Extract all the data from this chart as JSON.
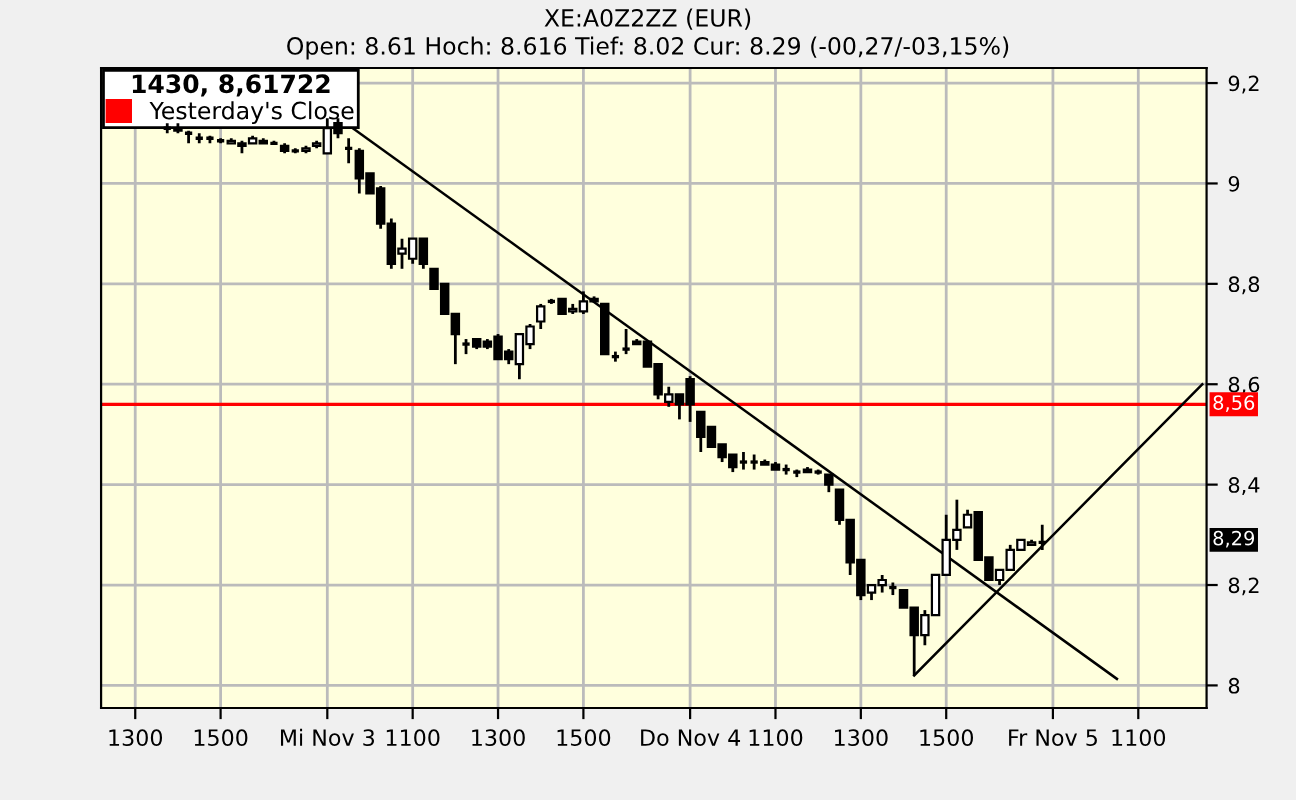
{
  "chart_data": {
    "type": "candlestick",
    "title": "XE:A0Z2ZZ (EUR)",
    "subtitle": "Open: 8.61 Hoch: 8.616 Tief: 8.02 Cur: 8.29 (-00,27/-03,15%)",
    "legend_title": "1430, 8,61722",
    "legend": "top left",
    "grid": true,
    "categories": [
      null,
      null,
      null,
      "1300",
      null,
      null,
      null,
      null,
      null,
      null,
      null,
      "1500",
      null,
      null,
      null,
      null,
      null,
      null,
      null,
      null,
      null,
      "Mi Nov 3",
      null,
      null,
      null,
      null,
      null,
      null,
      null,
      "1100",
      null,
      null,
      null,
      null,
      null,
      null,
      null,
      "1300",
      null,
      null,
      null,
      null,
      null,
      null,
      null,
      "1500",
      null,
      null,
      null,
      null,
      null,
      null,
      null,
      null,
      null,
      "Do Nov 4",
      null,
      null,
      null,
      null,
      null,
      null,
      null,
      "1100",
      null,
      null,
      null,
      null,
      null,
      null,
      null,
      "1300",
      null,
      null,
      null,
      null,
      null,
      null,
      null,
      "1500",
      null,
      null,
      null,
      null,
      null,
      null,
      null,
      null,
      null,
      "Fr Nov 5",
      null,
      null,
      null,
      null,
      null,
      null,
      null,
      "1100",
      null,
      null,
      null,
      null,
      null,
      null
    ],
    "ohlc": [
      null,
      null,
      null,
      null,
      null,
      null,
      [
        9.11,
        9.12,
        9.1,
        9.11
      ],
      [
        9.11,
        9.12,
        9.1,
        9.105
      ],
      [
        9.1,
        9.105,
        9.08,
        9.1
      ],
      [
        9.09,
        9.1,
        9.08,
        9.09
      ],
      [
        9.09,
        9.095,
        9.08,
        9.09
      ],
      [
        9.085,
        9.09,
        9.08,
        9.085
      ],
      [
        9.08,
        9.09,
        9.08,
        9.085
      ],
      [
        9.08,
        9.085,
        9.06,
        9.075
      ],
      [
        9.08,
        9.095,
        9.08,
        9.09
      ],
      [
        9.085,
        9.09,
        9.08,
        9.08
      ],
      [
        9.08,
        9.085,
        9.08,
        9.08
      ],
      [
        9.075,
        9.08,
        9.06,
        9.065
      ],
      [
        9.065,
        9.07,
        9.06,
        9.065
      ],
      [
        9.065,
        9.075,
        9.06,
        9.07
      ],
      [
        9.075,
        9.085,
        9.07,
        9.08
      ],
      [
        9.06,
        9.13,
        9.06,
        9.11
      ],
      [
        9.12,
        9.13,
        9.09,
        9.1
      ],
      [
        9.07,
        9.09,
        9.04,
        9.07
      ],
      [
        9.065,
        9.07,
        8.98,
        9.01
      ],
      [
        9.02,
        9.02,
        8.98,
        8.98
      ],
      [
        8.99,
        8.995,
        8.91,
        8.92
      ],
      [
        8.92,
        8.93,
        8.83,
        8.84
      ],
      [
        8.86,
        8.89,
        8.83,
        8.87
      ],
      [
        8.85,
        8.89,
        8.84,
        8.89
      ],
      [
        8.89,
        8.89,
        8.83,
        8.84
      ],
      [
        8.83,
        8.83,
        8.79,
        8.79
      ],
      [
        8.8,
        8.8,
        8.74,
        8.74
      ],
      [
        8.74,
        8.74,
        8.64,
        8.7
      ],
      [
        8.68,
        8.69,
        8.66,
        8.68
      ],
      [
        8.69,
        8.69,
        8.67,
        8.675
      ],
      [
        8.685,
        8.69,
        8.67,
        8.675
      ],
      [
        8.695,
        8.7,
        8.65,
        8.65
      ],
      [
        8.665,
        8.67,
        8.64,
        8.65
      ],
      [
        8.64,
        8.7,
        8.61,
        8.7
      ],
      [
        8.68,
        8.72,
        8.67,
        8.715
      ],
      [
        8.725,
        8.76,
        8.71,
        8.755
      ],
      [
        8.765,
        8.77,
        8.76,
        8.765
      ],
      [
        8.77,
        8.77,
        8.74,
        8.74
      ],
      [
        8.745,
        8.76,
        8.74,
        8.75
      ],
      [
        8.745,
        8.785,
        8.74,
        8.765
      ],
      [
        8.77,
        8.775,
        8.765,
        8.765
      ],
      [
        8.76,
        8.76,
        8.66,
        8.66
      ],
      [
        8.655,
        8.665,
        8.645,
        8.655
      ],
      [
        8.67,
        8.71,
        8.66,
        8.67
      ],
      [
        8.685,
        8.69,
        8.68,
        8.68
      ],
      [
        8.685,
        8.685,
        8.635,
        8.635
      ],
      [
        8.64,
        8.64,
        8.57,
        8.58
      ],
      [
        8.565,
        8.595,
        8.555,
        8.58
      ],
      [
        8.58,
        8.58,
        8.53,
        8.56
      ],
      [
        8.61,
        8.616,
        8.525,
        8.56
      ],
      [
        8.545,
        8.545,
        8.465,
        8.495
      ],
      [
        8.515,
        8.515,
        8.475,
        8.475
      ],
      [
        8.48,
        8.48,
        8.445,
        8.455
      ],
      [
        8.46,
        8.46,
        8.425,
        8.435
      ],
      [
        8.445,
        8.465,
        8.43,
        8.445
      ],
      [
        8.445,
        8.46,
        8.43,
        8.445
      ],
      [
        8.445,
        8.45,
        8.44,
        8.44
      ],
      [
        8.44,
        8.445,
        8.43,
        8.43
      ],
      [
        8.43,
        8.44,
        8.42,
        8.43
      ],
      [
        8.425,
        8.43,
        8.415,
        8.425
      ],
      [
        8.43,
        8.435,
        8.425,
        8.425
      ],
      [
        8.425,
        8.43,
        8.42,
        8.425
      ],
      [
        8.42,
        8.42,
        8.385,
        8.4
      ],
      [
        8.39,
        8.39,
        8.32,
        8.33
      ],
      [
        8.33,
        8.33,
        8.22,
        8.245
      ],
      [
        8.25,
        8.25,
        8.17,
        8.18
      ],
      [
        8.185,
        8.2,
        8.17,
        8.2
      ],
      [
        8.2,
        8.22,
        8.185,
        8.21
      ],
      [
        8.195,
        8.205,
        8.18,
        8.195
      ],
      [
        8.19,
        8.19,
        8.155,
        8.155
      ],
      [
        8.155,
        8.155,
        8.02,
        8.1
      ],
      [
        8.1,
        8.15,
        8.08,
        8.14
      ],
      [
        8.14,
        8.22,
        8.14,
        8.22
      ],
      [
        8.22,
        8.34,
        8.22,
        8.29
      ],
      [
        8.29,
        8.37,
        8.27,
        8.31
      ],
      [
        8.315,
        8.35,
        8.315,
        8.34
      ],
      [
        8.345,
        8.345,
        8.25,
        8.25
      ],
      [
        8.255,
        8.255,
        8.21,
        8.21
      ],
      [
        8.21,
        8.23,
        8.2,
        8.23
      ],
      [
        8.23,
        8.28,
        8.23,
        8.27
      ],
      [
        8.27,
        8.29,
        8.27,
        8.29
      ],
      [
        8.28,
        8.29,
        8.28,
        8.285
      ],
      [
        8.285,
        8.32,
        8.27,
        8.285
      ],
      null,
      null,
      null,
      null,
      null,
      null,
      null,
      null,
      null,
      null,
      null,
      null,
      null,
      null,
      null
    ],
    "series": [
      {
        "type": "line",
        "color": "#000000",
        "values": [
          null,
          null,
          null,
          null,
          null,
          null,
          null,
          null,
          null,
          null,
          null,
          null,
          null,
          null,
          null,
          null,
          null,
          null,
          null,
          null,
          null,
          null,
          null,
          9.116,
          null,
          null,
          null,
          null,
          null,
          null,
          null,
          null,
          null,
          null,
          null,
          null,
          null,
          null,
          null,
          null,
          null,
          null,
          null,
          null,
          null,
          null,
          null,
          null,
          null,
          null,
          null,
          null,
          null,
          null,
          null,
          null,
          null,
          null,
          null,
          null,
          null,
          null,
          null,
          null,
          null,
          null,
          null,
          null,
          null,
          null,
          null,
          null,
          null,
          null,
          null,
          null,
          null,
          null,
          null,
          null,
          null,
          null,
          null,
          null,
          null,
          null,
          null,
          null,
          null,
          null,
          null,
          null,
          null,
          null,
          null,
          8.013,
          null,
          null,
          null,
          null,
          null,
          null,
          null,
          null
        ]
      },
      {
        "type": "line",
        "color": "#000000",
        "values": [
          null,
          null,
          null,
          null,
          null,
          null,
          null,
          null,
          null,
          null,
          null,
          null,
          null,
          null,
          null,
          null,
          null,
          null,
          null,
          null,
          null,
          null,
          null,
          null,
          null,
          null,
          null,
          null,
          null,
          null,
          null,
          null,
          null,
          null,
          null,
          null,
          null,
          null,
          null,
          null,
          null,
          null,
          null,
          null,
          null,
          null,
          null,
          null,
          null,
          null,
          null,
          null,
          null,
          null,
          null,
          null,
          null,
          null,
          null,
          null,
          null,
          null,
          null,
          null,
          null,
          null,
          null,
          null,
          null,
          null,
          null,
          null,
          null,
          null,
          null,
          null,
          8.02,
          null,
          null,
          null,
          null,
          null,
          null,
          null,
          null,
          null,
          null,
          null,
          null,
          null,
          null,
          null,
          null,
          null,
          null,
          null,
          null,
          null,
          null,
          null,
          null,
          null,
          null,
          8.6
        ]
      }
    ],
    "ref_lines": [
      {
        "axis": "y",
        "value": 8.56,
        "label": "Yesterday's Close",
        "color": "#ff0000"
      }
    ],
    "annotations": [
      {
        "text": "8,56",
        "y": 8.56
      },
      {
        "text": "8,29",
        "y": 8.29
      }
    ],
    "ylim": [
      7.955,
      9.23
    ],
    "yticks": [
      8,
      {
        "value": 8.2,
        "label": "8,2"
      },
      {
        "value": 8.4,
        "label": "8,4"
      },
      {
        "value": 8.6,
        "label": "8,6"
      },
      {
        "value": 8.8,
        "label": "8,8"
      },
      9,
      {
        "value": 9.2,
        "label": "9,2"
      }
    ]
  }
}
